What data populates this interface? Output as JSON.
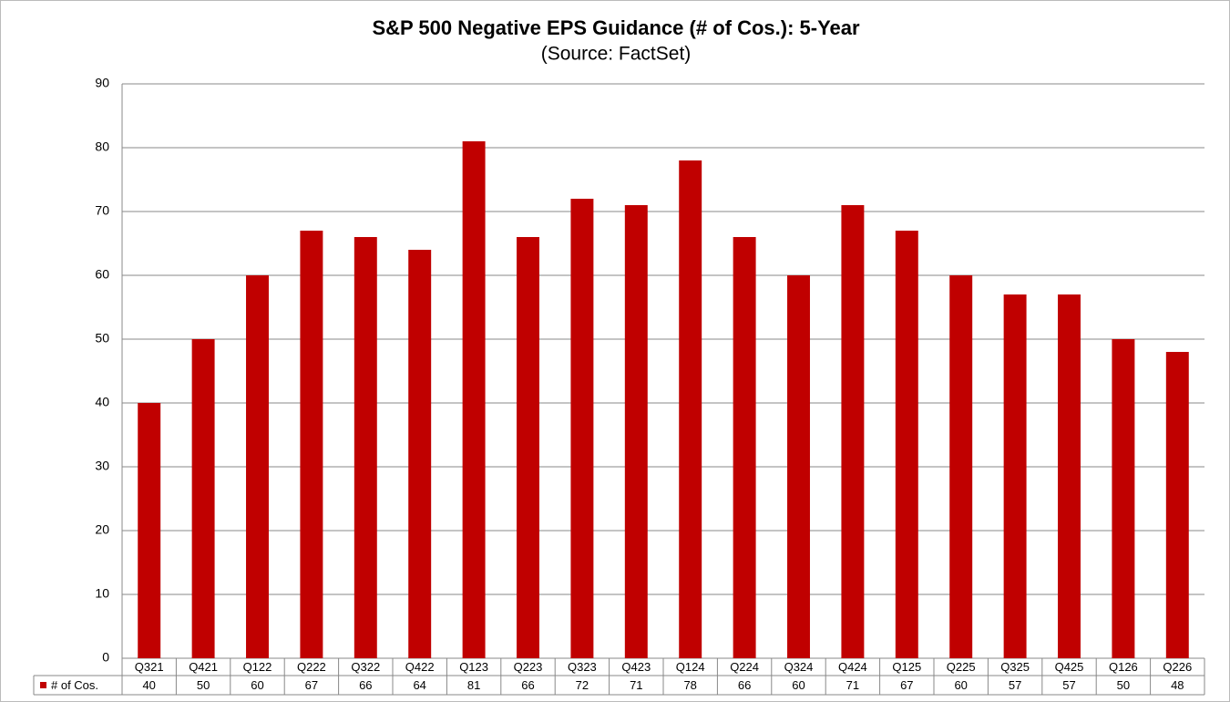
{
  "chart_data": {
    "type": "bar",
    "title": "S&P 500 Negative EPS Guidance (# of Cos.): 5-Year",
    "subtitle": "(Source: FactSet)",
    "categories": [
      "Q321",
      "Q421",
      "Q122",
      "Q222",
      "Q322",
      "Q422",
      "Q123",
      "Q223",
      "Q323",
      "Q423",
      "Q124",
      "Q224",
      "Q324",
      "Q424",
      "Q125",
      "Q225",
      "Q325",
      "Q425",
      "Q126",
      "Q226"
    ],
    "series": [
      {
        "name": "# of Cos.",
        "color": "#c00000",
        "values": [
          40,
          50,
          60,
          67,
          66,
          64,
          81,
          66,
          72,
          71,
          78,
          66,
          60,
          71,
          67,
          60,
          57,
          57,
          50,
          48
        ]
      }
    ],
    "ylim": [
      0,
      90
    ],
    "yticks": [
      0,
      10,
      20,
      30,
      40,
      50,
      60,
      70,
      80,
      90
    ],
    "grid": true
  }
}
